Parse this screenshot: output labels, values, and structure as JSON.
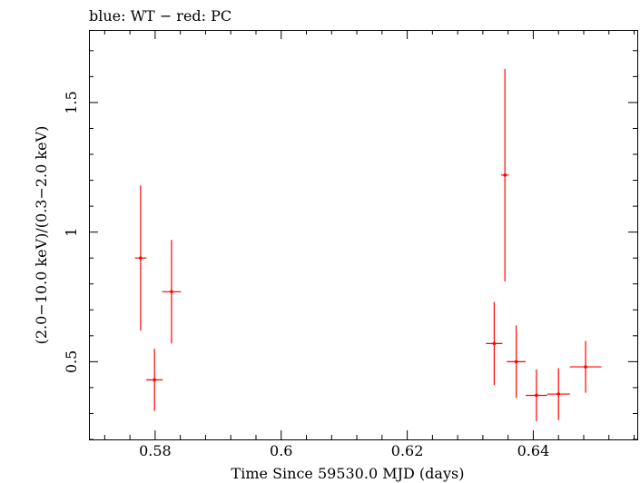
{
  "chart_data": {
    "type": "scatter",
    "title": "blue: WT − red: PC",
    "xlabel": "Time Since 59530.0 MJD (days)",
    "ylabel": "(2.0−10.0 keV)/(0.3−2.0 keV)",
    "xlim": [
      0.5695,
      0.6565
    ],
    "ylim": [
      0.2,
      1.78
    ],
    "x_ticks": [
      0.58,
      0.6,
      0.62,
      0.64
    ],
    "x_tick_labels": [
      "0.58",
      "0.6",
      "0.62",
      "0.64"
    ],
    "y_ticks": [
      0.5,
      1,
      1.5
    ],
    "y_tick_labels": [
      "0.5",
      "1",
      "1.5"
    ],
    "grid": false,
    "series": [
      {
        "name": "PC",
        "color": "#ff0000",
        "points": [
          {
            "x": 0.5777,
            "xerr": 0.0009,
            "y": 0.9,
            "yerr_low": 0.28,
            "yerr_high": 0.28
          },
          {
            "x": 0.5799,
            "xerr": 0.0013,
            "y": 0.43,
            "yerr_low": 0.12,
            "yerr_high": 0.12
          },
          {
            "x": 0.5826,
            "xerr": 0.0015,
            "y": 0.77,
            "yerr_low": 0.2,
            "yerr_high": 0.2
          },
          {
            "x": 0.6338,
            "xerr": 0.0013,
            "y": 0.57,
            "yerr_low": 0.16,
            "yerr_high": 0.16
          },
          {
            "x": 0.6355,
            "xerr": 0.0006,
            "y": 1.22,
            "yerr_low": 0.41,
            "yerr_high": 0.41
          },
          {
            "x": 0.6373,
            "xerr": 0.0015,
            "y": 0.5,
            "yerr_low": 0.14,
            "yerr_high": 0.14
          },
          {
            "x": 0.6405,
            "xerr": 0.0017,
            "y": 0.37,
            "yerr_low": 0.1,
            "yerr_high": 0.1
          },
          {
            "x": 0.644,
            "xerr": 0.0018,
            "y": 0.375,
            "yerr_low": 0.1,
            "yerr_high": 0.1
          },
          {
            "x": 0.6483,
            "xerr": 0.0025,
            "y": 0.48,
            "yerr_low": 0.1,
            "yerr_high": 0.1
          }
        ]
      }
    ]
  }
}
